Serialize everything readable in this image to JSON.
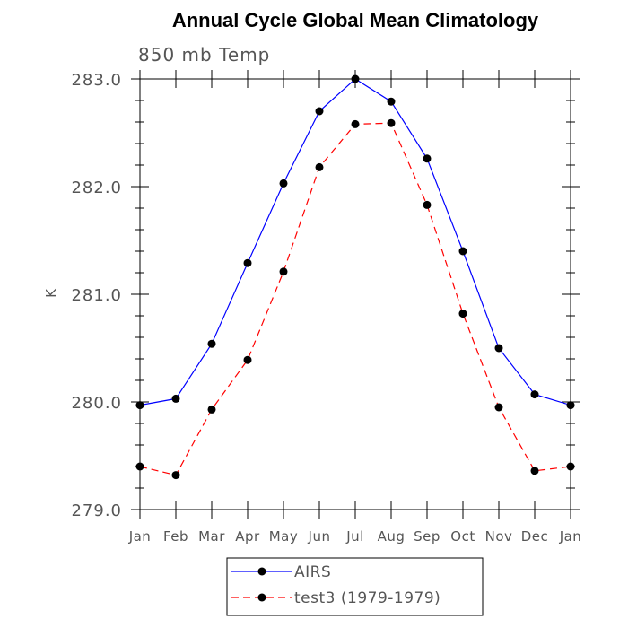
{
  "chart_data": {
    "type": "line",
    "title": "Annual Cycle Global Mean Climatology",
    "subtitle": "850 mb Temp",
    "xlabel": "",
    "ylabel": "K",
    "categories": [
      "Jan",
      "Feb",
      "Mar",
      "Apr",
      "May",
      "Jun",
      "Jul",
      "Aug",
      "Sep",
      "Oct",
      "Nov",
      "Dec",
      "Jan"
    ],
    "ylim": [
      279.0,
      283.0
    ],
    "yticks": [
      "279.0",
      "280.0",
      "281.0",
      "282.0",
      "283.0"
    ],
    "grid": false,
    "legend_position": "bottom-center",
    "series": [
      {
        "name": "AIRS",
        "color": "#0000ff",
        "line_style": "solid",
        "marker": "filled-circle",
        "values": [
          279.97,
          280.03,
          280.54,
          281.29,
          282.03,
          282.7,
          283.0,
          282.79,
          282.26,
          281.4,
          280.5,
          280.07,
          279.97
        ]
      },
      {
        "name": "test3 (1979-1979)",
        "color": "#ff0000",
        "line_style": "dashed",
        "marker": "filled-circle",
        "values": [
          279.4,
          279.32,
          279.93,
          280.39,
          281.21,
          282.18,
          282.58,
          282.59,
          281.83,
          280.82,
          279.95,
          279.36,
          279.4
        ]
      }
    ]
  }
}
